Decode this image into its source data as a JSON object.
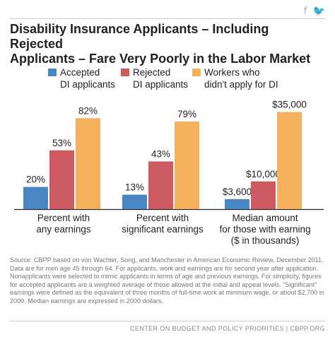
{
  "header": {
    "facebook_icon": "f",
    "twitter_icon": "🐦"
  },
  "chart_data": {
    "type": "bar",
    "title": "Disability Insurance Applicants – Including Rejected\nApplicants – Fare Very Poorly in the Labor Market",
    "categories": [
      [
        "Percent with",
        "any earnings"
      ],
      [
        "Percent with",
        "significant earnings"
      ],
      [
        "Median amount",
        "for those with earning",
        "($ in thousands)"
      ]
    ],
    "series": [
      {
        "name": [
          "Accepted",
          "DI applicants"
        ],
        "color": "#4a86c4",
        "values": [
          20,
          13,
          3.6
        ],
        "labels": [
          "20%",
          "13%",
          "$3,600"
        ]
      },
      {
        "name": [
          "Rejected",
          "DI applicants"
        ],
        "color": "#cc5a60",
        "values": [
          53,
          43,
          10
        ],
        "labels": [
          "53%",
          "43%",
          "$10,000"
        ]
      },
      {
        "name": [
          "Workers who",
          "didn't apply for DI"
        ],
        "color": "#f3b15e",
        "values": [
          82,
          79,
          35
        ],
        "labels": [
          "82%",
          "79%",
          "$35,000"
        ]
      }
    ],
    "group_max": [
      100,
      100,
      40
    ],
    "grid": false,
    "legend": "top"
  },
  "source_note": "Source: CBPP based on von Wachter, Song, and Manchester in American Economic Review, December 2011. Data are for men age 45 through 64. For applicants, work and earnings are for second year after application. Nonapplicants were selected to mimic applicants in terms of age and previous earnings. For simplicity, figures for accepted applicants are a weighted average of those allowed at the initial and appeal levels. “Significant” earnings were defined as the equivalent of three months of full-time work at minimum wage, or about $2,700 in 2000. Median earnings are expressed in 2000 dollars.",
  "footer": "CENTER ON BUDGET AND POLICY PRIORITIES | CBPP.ORG"
}
